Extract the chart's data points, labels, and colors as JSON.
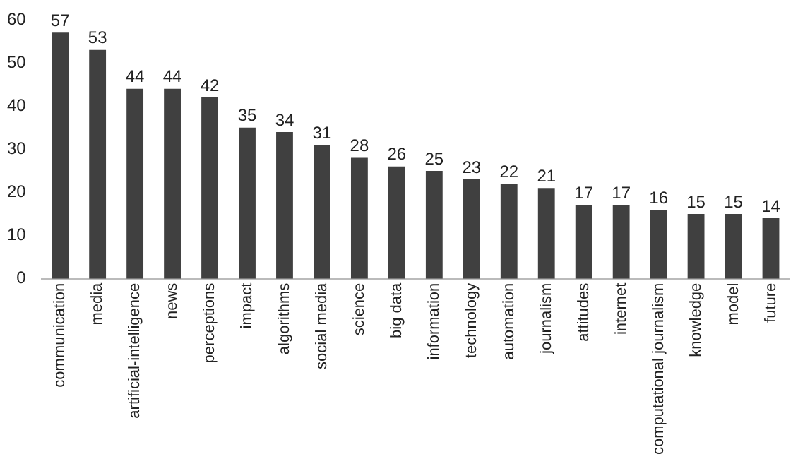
{
  "chart_data": {
    "type": "bar",
    "categories": [
      "communication",
      "media",
      "artificial-intelligence",
      "news",
      "perceptions",
      "impact",
      "algorithms",
      "social media",
      "science",
      "big data",
      "information",
      "technology",
      "automation",
      "journalism",
      "attitudes",
      "internet",
      "computational journalism",
      "knowledge",
      "model",
      "future"
    ],
    "values": [
      57,
      53,
      44,
      44,
      42,
      35,
      34,
      31,
      28,
      26,
      25,
      23,
      22,
      21,
      17,
      17,
      16,
      15,
      15,
      14
    ],
    "color": "#404040",
    "ylim": [
      0,
      60
    ],
    "yticks": [
      0,
      10,
      20,
      30,
      40,
      50,
      60
    ],
    "grid": false,
    "legend": false,
    "data_labels": true
  }
}
